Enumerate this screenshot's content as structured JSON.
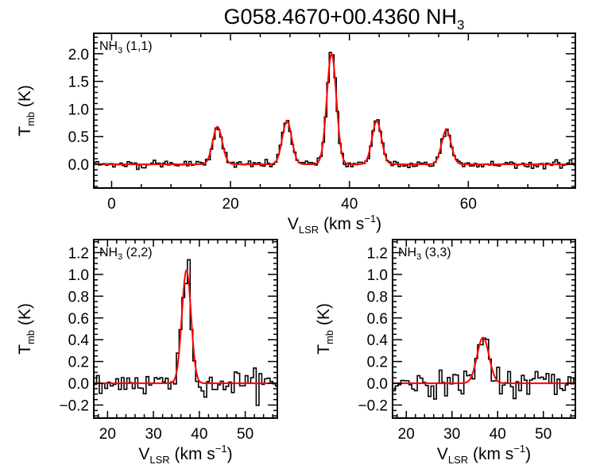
{
  "title": {
    "main": "G058.4670+00.4360 NH",
    "sub": "3"
  },
  "colors": {
    "data": "#000000",
    "fit": "#ff0000"
  },
  "chart_data": [
    {
      "type": "line",
      "panel": "top",
      "label": {
        "main": "NH",
        "sub": "3",
        "rest": " (1,1)"
      },
      "xlabel": {
        "main": "V",
        "sub": "LSR",
        "rest": " (km s",
        "sup": "−1",
        "close": ")"
      },
      "ylabel": {
        "main": "T",
        "sub": "mb",
        "rest": " (K)"
      },
      "xlim": [
        -3,
        78
      ],
      "ylim": [
        -0.43,
        2.37
      ],
      "xticks": [
        0,
        20,
        40,
        60
      ],
      "xtick_labels": [
        "0",
        "20",
        "40",
        "60"
      ],
      "yticks": [
        0.0,
        0.5,
        1.0,
        1.5,
        2.0
      ],
      "ytick_labels": [
        "0.0",
        "0.5",
        "1.0",
        "1.5",
        "2.0"
      ],
      "xminor": 5,
      "yminor": 0.1,
      "channel_width": 0.4,
      "noise_rms": 0.035,
      "fit_components": [
        {
          "center": 17.8,
          "amp": 0.68,
          "sigma": 0.8
        },
        {
          "center": 29.5,
          "amp": 0.78,
          "sigma": 0.8
        },
        {
          "center": 37.0,
          "amp": 2.0,
          "sigma": 0.8
        },
        {
          "center": 44.6,
          "amp": 0.78,
          "sigma": 0.8
        },
        {
          "center": 56.3,
          "amp": 0.62,
          "sigma": 0.8
        }
      ]
    },
    {
      "type": "line",
      "panel": "bottom-left",
      "label": {
        "main": "NH",
        "sub": "3",
        "rest": " (2,2)"
      },
      "xlabel": {
        "main": "V",
        "sub": "LSR",
        "rest": " (km s",
        "sup": "−1",
        "close": ")"
      },
      "ylabel": {
        "main": "T",
        "sub": "mb",
        "rest": " (K)"
      },
      "xlim": [
        17,
        57
      ],
      "ylim": [
        -0.32,
        1.32
      ],
      "xticks": [
        20,
        30,
        40,
        50
      ],
      "xtick_labels": [
        "20",
        "30",
        "40",
        "50"
      ],
      "yticks": [
        -0.2,
        0.0,
        0.2,
        0.4,
        0.6,
        0.8,
        1.0,
        1.2
      ],
      "ytick_labels": [
        "−0.2",
        "0.0",
        "0.2",
        "0.4",
        "0.6",
        "0.8",
        "1.0",
        "1.2"
      ],
      "xminor": 2,
      "yminor": 0.05,
      "channel_width": 0.6,
      "noise_rms": 0.06,
      "fit_components": [
        {
          "center": 37.2,
          "amp": 1.04,
          "sigma": 1.0
        }
      ]
    },
    {
      "type": "line",
      "panel": "bottom-right",
      "label": {
        "main": "NH",
        "sub": "3",
        "rest": " (3,3)"
      },
      "xlabel": {
        "main": "V",
        "sub": "LSR",
        "rest": " (km s",
        "sup": "−1",
        "close": ")"
      },
      "ylabel": {
        "main": "T",
        "sub": "mb",
        "rest": " (K)"
      },
      "xlim": [
        17,
        57
      ],
      "ylim": [
        -0.32,
        1.32
      ],
      "xticks": [
        20,
        30,
        40,
        50
      ],
      "xtick_labels": [
        "20",
        "30",
        "40",
        "50"
      ],
      "yticks": [
        -0.2,
        0.0,
        0.2,
        0.4,
        0.6,
        0.8,
        1.0,
        1.2
      ],
      "ytick_labels": [
        "−0.2",
        "0.0",
        "0.2",
        "0.4",
        "0.6",
        "0.8",
        "1.0",
        "1.2"
      ],
      "xminor": 2,
      "yminor": 0.05,
      "channel_width": 0.6,
      "noise_rms": 0.055,
      "fit_components": [
        {
          "center": 36.8,
          "amp": 0.42,
          "sigma": 1.3
        }
      ]
    }
  ]
}
